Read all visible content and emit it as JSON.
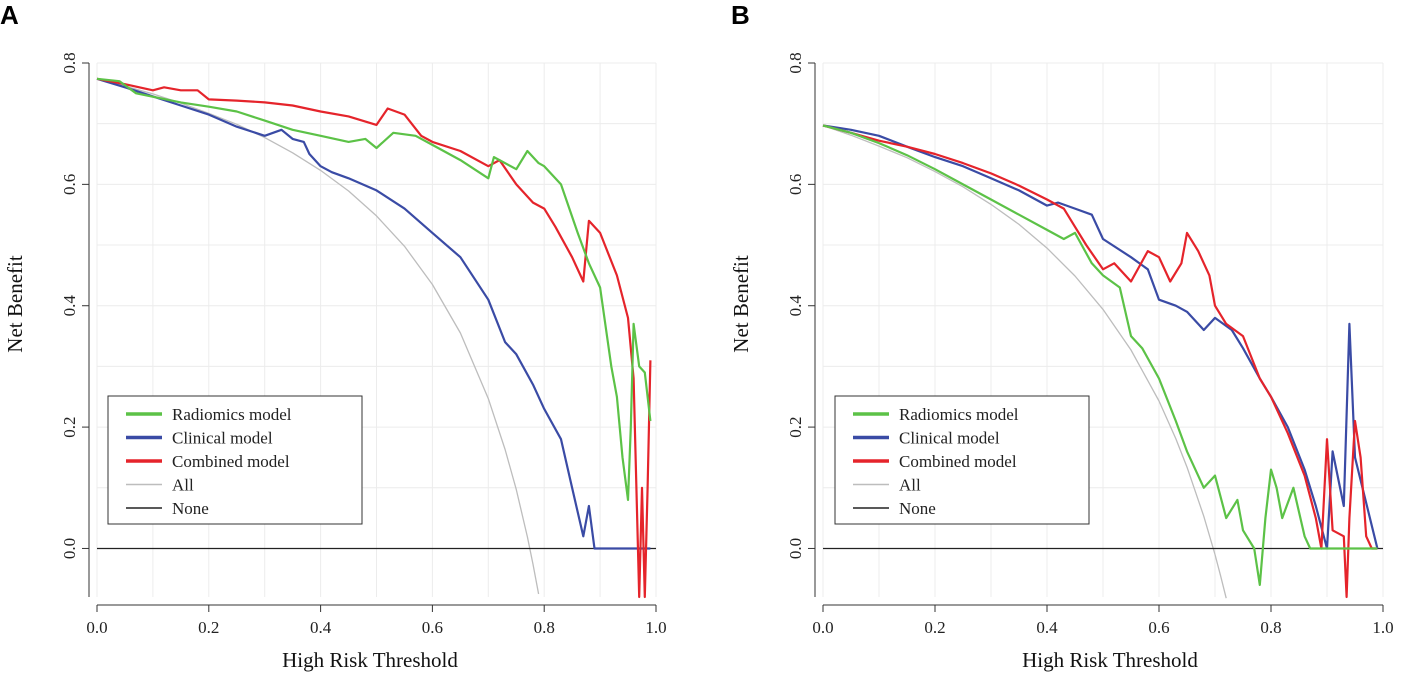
{
  "chart_data": [
    {
      "panel": "A",
      "type": "line",
      "xlabel": "High Risk Threshold",
      "ylabel": "Net Benefit",
      "xlim": [
        0,
        1
      ],
      "ylim": [
        -0.08,
        0.8
      ],
      "xticks": [
        "0.0",
        "0.2",
        "0.4",
        "0.6",
        "0.8",
        "1.0"
      ],
      "yticks": [
        "0.0",
        "0.2",
        "0.4",
        "0.6",
        "0.8"
      ],
      "legend_position": "bottom-left",
      "series": [
        {
          "name": "Radiomics model",
          "color": "#5cc247",
          "x": [
            0,
            0.04,
            0.07,
            0.15,
            0.2,
            0.25,
            0.3,
            0.35,
            0.4,
            0.45,
            0.48,
            0.5,
            0.53,
            0.57,
            0.6,
            0.65,
            0.7,
            0.71,
            0.75,
            0.77,
            0.79,
            0.8,
            0.83,
            0.86,
            0.88,
            0.9,
            0.92,
            0.93,
            0.94,
            0.95,
            0.955,
            0.96,
            0.97,
            0.98,
            0.99
          ],
          "y": [
            0.774,
            0.77,
            0.75,
            0.735,
            0.728,
            0.72,
            0.705,
            0.69,
            0.68,
            0.67,
            0.675,
            0.66,
            0.685,
            0.68,
            0.665,
            0.64,
            0.61,
            0.645,
            0.625,
            0.655,
            0.635,
            0.63,
            0.6,
            0.52,
            0.47,
            0.43,
            0.3,
            0.25,
            0.15,
            0.08,
            0.2,
            0.37,
            0.3,
            0.29,
            0.21
          ]
        },
        {
          "name": "Clinical model",
          "color": "#3a4ba5",
          "x": [
            0,
            0.05,
            0.1,
            0.15,
            0.2,
            0.25,
            0.3,
            0.33,
            0.35,
            0.37,
            0.38,
            0.4,
            0.42,
            0.45,
            0.5,
            0.55,
            0.6,
            0.65,
            0.7,
            0.73,
            0.75,
            0.78,
            0.8,
            0.83,
            0.85,
            0.87,
            0.88,
            0.89,
            0.99
          ],
          "y": [
            0.774,
            0.76,
            0.745,
            0.73,
            0.715,
            0.695,
            0.68,
            0.69,
            0.675,
            0.67,
            0.65,
            0.63,
            0.62,
            0.61,
            0.59,
            0.56,
            0.52,
            0.48,
            0.41,
            0.34,
            0.32,
            0.27,
            0.23,
            0.18,
            0.1,
            0.02,
            0.07,
            0,
            0
          ]
        },
        {
          "name": "Combined model",
          "color": "#e5242b",
          "x": [
            0,
            0.05,
            0.1,
            0.12,
            0.15,
            0.18,
            0.2,
            0.25,
            0.3,
            0.35,
            0.4,
            0.45,
            0.5,
            0.52,
            0.55,
            0.58,
            0.6,
            0.65,
            0.7,
            0.72,
            0.75,
            0.78,
            0.8,
            0.82,
            0.85,
            0.87,
            0.88,
            0.9,
            0.93,
            0.95,
            0.96,
            0.965,
            0.97,
            0.975,
            0.98,
            0.985,
            0.99
          ],
          "y": [
            0.774,
            0.765,
            0.755,
            0.76,
            0.755,
            0.755,
            0.74,
            0.738,
            0.735,
            0.73,
            0.72,
            0.712,
            0.698,
            0.725,
            0.715,
            0.68,
            0.67,
            0.655,
            0.63,
            0.64,
            0.6,
            0.57,
            0.56,
            0.53,
            0.48,
            0.44,
            0.54,
            0.52,
            0.45,
            0.38,
            0.28,
            0.1,
            -0.08,
            0.1,
            -0.08,
            0.1,
            0.31
          ]
        },
        {
          "name": "All",
          "color": "#bdbdbd",
          "x": [
            0,
            0.05,
            0.1,
            0.15,
            0.2,
            0.25,
            0.3,
            0.35,
            0.4,
            0.45,
            0.5,
            0.55,
            0.6,
            0.65,
            0.7,
            0.73,
            0.75,
            0.77,
            0.78,
            0.79
          ],
          "y": [
            0.774,
            0.762,
            0.749,
            0.734,
            0.717,
            0.699,
            0.677,
            0.652,
            0.623,
            0.589,
            0.548,
            0.498,
            0.435,
            0.355,
            0.247,
            0.163,
            0.097,
            0.019,
            -0.026,
            -0.075
          ]
        },
        {
          "name": "None",
          "color": "#222222",
          "x": [
            0,
            1
          ],
          "y": [
            0,
            0
          ]
        }
      ]
    },
    {
      "panel": "B",
      "type": "line",
      "xlabel": "High Risk Threshold",
      "ylabel": "Net Benefit",
      "xlim": [
        0,
        1
      ],
      "ylim": [
        -0.08,
        0.8
      ],
      "xticks": [
        "0.0",
        "0.2",
        "0.4",
        "0.6",
        "0.8",
        "1.0"
      ],
      "yticks": [
        "0.0",
        "0.2",
        "0.4",
        "0.6",
        "0.8"
      ],
      "legend_position": "bottom-left",
      "series": [
        {
          "name": "Radiomics model",
          "color": "#5cc247",
          "x": [
            0,
            0.05,
            0.1,
            0.15,
            0.2,
            0.25,
            0.3,
            0.35,
            0.4,
            0.43,
            0.45,
            0.48,
            0.5,
            0.53,
            0.55,
            0.57,
            0.6,
            0.63,
            0.65,
            0.68,
            0.7,
            0.72,
            0.74,
            0.75,
            0.77,
            0.78,
            0.79,
            0.8,
            0.81,
            0.82,
            0.84,
            0.86,
            0.87,
            0.99
          ],
          "y": [
            0.697,
            0.685,
            0.668,
            0.648,
            0.625,
            0.6,
            0.575,
            0.55,
            0.525,
            0.51,
            0.52,
            0.47,
            0.45,
            0.43,
            0.35,
            0.33,
            0.28,
            0.21,
            0.16,
            0.1,
            0.12,
            0.05,
            0.08,
            0.03,
            0,
            -0.06,
            0.05,
            0.13,
            0.1,
            0.05,
            0.1,
            0.02,
            0,
            0
          ]
        },
        {
          "name": "Clinical model",
          "color": "#3a4ba5",
          "x": [
            0,
            0.05,
            0.1,
            0.15,
            0.2,
            0.25,
            0.3,
            0.35,
            0.4,
            0.42,
            0.45,
            0.48,
            0.5,
            0.55,
            0.58,
            0.6,
            0.63,
            0.65,
            0.68,
            0.7,
            0.73,
            0.75,
            0.78,
            0.8,
            0.83,
            0.86,
            0.88,
            0.9,
            0.91,
            0.93,
            0.94,
            0.95,
            0.99
          ],
          "y": [
            0.697,
            0.69,
            0.68,
            0.662,
            0.645,
            0.63,
            0.61,
            0.59,
            0.565,
            0.57,
            0.56,
            0.55,
            0.51,
            0.48,
            0.46,
            0.41,
            0.4,
            0.39,
            0.36,
            0.38,
            0.36,
            0.33,
            0.28,
            0.25,
            0.2,
            0.13,
            0.07,
            0,
            0.16,
            0.07,
            0.37,
            0.15,
            0
          ]
        },
        {
          "name": "Combined model",
          "color": "#e5242b",
          "x": [
            0,
            0.05,
            0.1,
            0.15,
            0.2,
            0.25,
            0.3,
            0.35,
            0.4,
            0.43,
            0.45,
            0.47,
            0.5,
            0.52,
            0.55,
            0.58,
            0.6,
            0.62,
            0.64,
            0.65,
            0.67,
            0.69,
            0.7,
            0.72,
            0.75,
            0.78,
            0.8,
            0.83,
            0.86,
            0.88,
            0.89,
            0.9,
            0.91,
            0.93,
            0.935,
            0.94,
            0.95,
            0.96,
            0.97,
            0.98,
            0.99
          ],
          "y": [
            0.697,
            0.685,
            0.672,
            0.662,
            0.65,
            0.635,
            0.618,
            0.598,
            0.575,
            0.56,
            0.53,
            0.5,
            0.46,
            0.47,
            0.44,
            0.49,
            0.48,
            0.44,
            0.47,
            0.52,
            0.49,
            0.45,
            0.4,
            0.37,
            0.35,
            0.28,
            0.25,
            0.19,
            0.12,
            0.05,
            0,
            0.18,
            0.03,
            0.02,
            -0.08,
            0.05,
            0.21,
            0.15,
            0.02,
            0,
            0
          ]
        },
        {
          "name": "All",
          "color": "#bdbdbd",
          "x": [
            0,
            0.05,
            0.1,
            0.15,
            0.2,
            0.25,
            0.3,
            0.35,
            0.4,
            0.45,
            0.5,
            0.55,
            0.6,
            0.63,
            0.65,
            0.68,
            0.7,
            0.71,
            0.72
          ],
          "y": [
            0.697,
            0.681,
            0.663,
            0.644,
            0.621,
            0.596,
            0.567,
            0.534,
            0.495,
            0.449,
            0.394,
            0.327,
            0.243,
            0.181,
            0.134,
            0.053,
            -0.01,
            -0.045,
            -0.082
          ]
        },
        {
          "name": "None",
          "color": "#222222",
          "x": [
            0,
            1
          ],
          "y": [
            0,
            0
          ]
        }
      ]
    }
  ]
}
